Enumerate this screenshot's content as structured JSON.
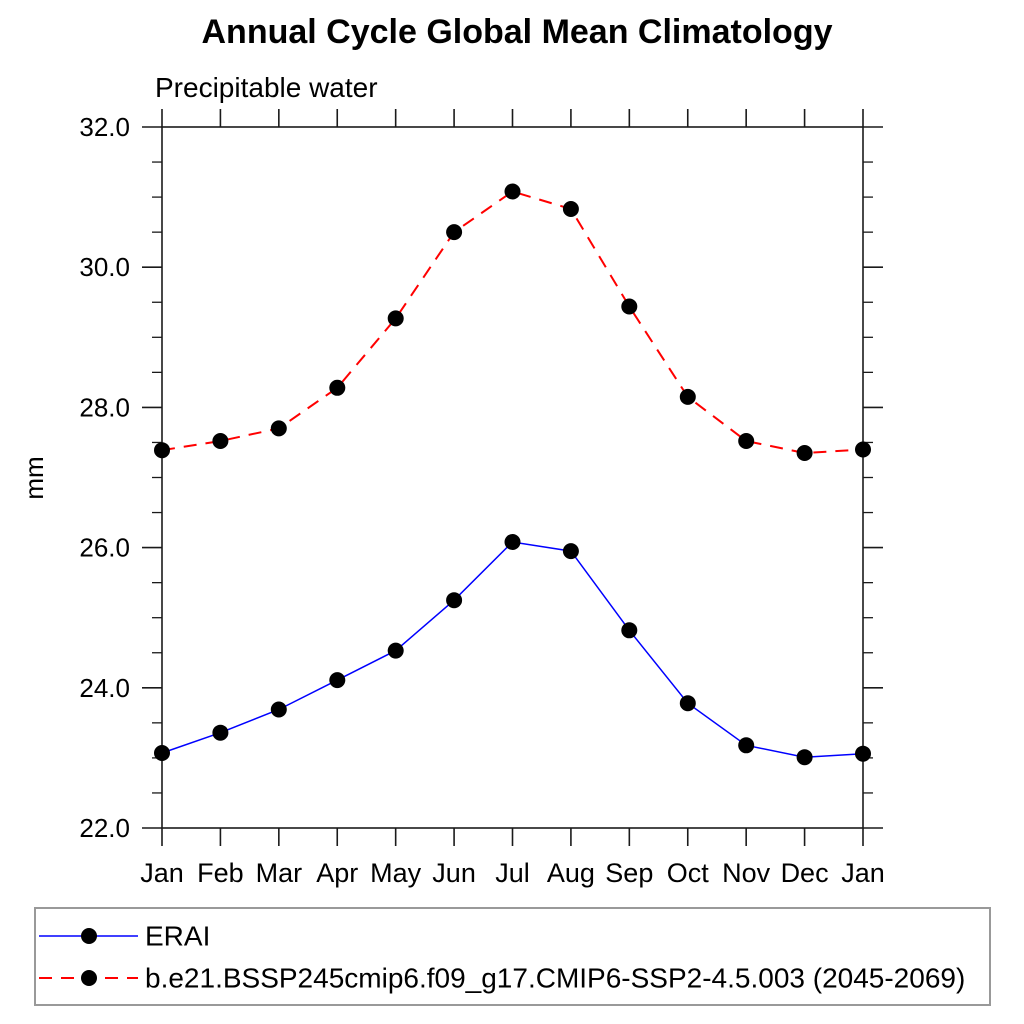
{
  "chart_data": {
    "type": "line",
    "title": "Annual Cycle Global Mean Climatology",
    "subtitle": "Precipitable water",
    "ylabel": "mm",
    "xlabel": "",
    "categories": [
      "Jan",
      "Feb",
      "Mar",
      "Apr",
      "May",
      "Jun",
      "Jul",
      "Aug",
      "Sep",
      "Oct",
      "Nov",
      "Dec",
      "Jan"
    ],
    "ylim": [
      22.0,
      32.0
    ],
    "ytick_major": [
      22.0,
      24.0,
      26.0,
      28.0,
      30.0,
      32.0
    ],
    "ytick_major_labels": [
      "22.0",
      "24.0",
      "26.0",
      "28.0",
      "30.0",
      "32.0"
    ],
    "ytick_minor_step": 0.5,
    "grid": false,
    "legend_position": "bottom-left-box",
    "marker": "filled-circle",
    "marker_color": "#000000",
    "series": [
      {
        "name": "ERAI",
        "color": "#0000ff",
        "line_style": "solid",
        "values": [
          23.07,
          23.36,
          23.69,
          24.11,
          24.53,
          25.25,
          26.08,
          25.95,
          24.82,
          23.78,
          23.18,
          23.01,
          23.06
        ]
      },
      {
        "name": "b.e21.BSSP245cmip6.f09_g17.CMIP6-SSP2-4.5.003 (2045-2069)",
        "color": "#ff0000",
        "line_style": "dashed",
        "values": [
          27.39,
          27.52,
          27.7,
          28.28,
          29.27,
          30.5,
          31.08,
          30.83,
          29.44,
          28.15,
          27.52,
          27.35,
          27.4
        ]
      }
    ]
  }
}
